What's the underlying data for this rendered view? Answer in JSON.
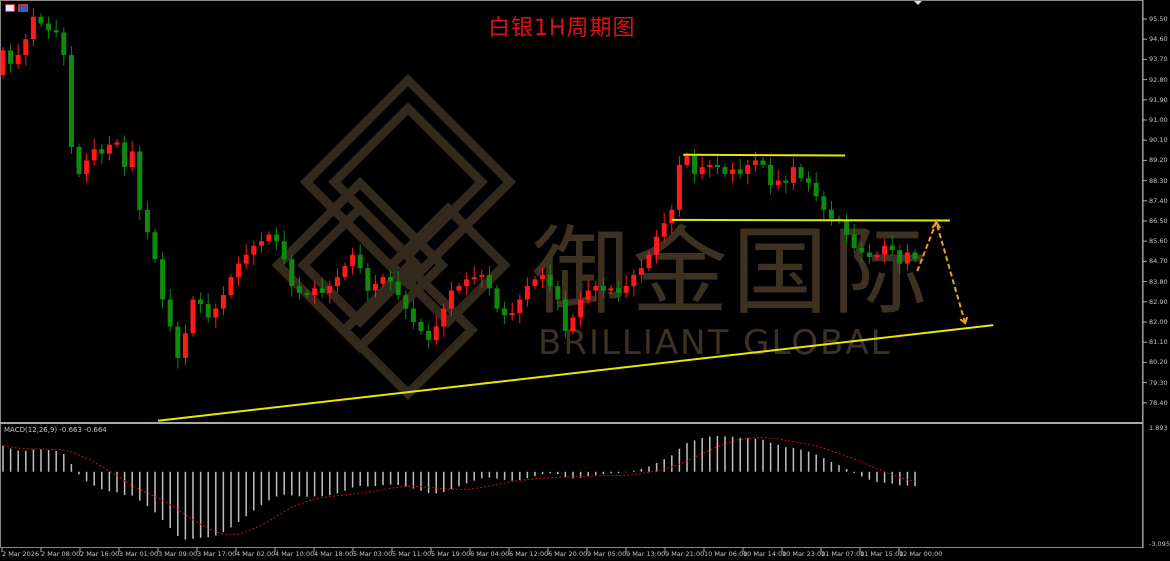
{
  "title": "白银1H周期图",
  "macd_label": "MACD(12,26,9) -0.663 -0.664",
  "watermark": {
    "cn": "御金国际",
    "en": "BRILLIANT GLOBAL"
  },
  "icons": [
    "chart-grid-icon",
    "save-icon",
    "chart-shift-marker-icon"
  ],
  "colors": {
    "bull": "#ff1a1a",
    "bear": "#0f8a0f",
    "trendline": "#e8e800",
    "forecast": "#f0a020",
    "macd_hist": "#c0c0c0",
    "macd_signal": "#d01010",
    "axis": "#c8c8c8",
    "watermark": "#3d3122"
  },
  "chart_data": {
    "type": "candlestick",
    "title": "白银1H周期图",
    "price_axis": {
      "labels": [
        "95.50",
        "94.60",
        "93.70",
        "92.80",
        "91.90",
        "91.00",
        "90.10",
        "89.20",
        "88.30",
        "87.40",
        "86.50",
        "85.60",
        "84.70",
        "83.80",
        "82.90",
        "82.00",
        "81.10",
        "80.20",
        "79.30",
        "78.40"
      ],
      "range": [
        78.0,
        96.0
      ]
    },
    "macd_axis": {
      "labels": [
        "1.893",
        "-3.095"
      ],
      "range": [
        -3.095,
        1.893
      ]
    },
    "time_axis": {
      "labels": [
        "2 Mar 2026",
        "2 Mar 08:00",
        "2 Mar 16:00",
        "3 Mar 01:00",
        "3 Mar 09:00",
        "3 Mar 17:00",
        "4 Mar 02:00",
        "4 Mar 10:00",
        "4 Mar 18:00",
        "5 Mar 03:00",
        "5 Mar 11:00",
        "5 Mar 19:00",
        "6 Mar 04:00",
        "6 Mar 12:00",
        "6 Mar 20:00",
        "9 Mar 05:00",
        "9 Mar 13:00",
        "9 Mar 21:00",
        "10 Mar 06:00",
        "10 Mar 14:00",
        "10 Mar 23:00",
        "11 Mar 07:00",
        "11 Mar 15:00",
        "12 Mar 00:00"
      ]
    },
    "close": [
      94.1,
      93.5,
      93.9,
      94.6,
      95.6,
      95.3,
      95.0,
      94.9,
      93.9,
      89.8,
      88.6,
      89.2,
      89.7,
      89.5,
      89.9,
      90.0,
      88.9,
      89.6,
      87.0,
      86.0,
      84.8,
      83.0,
      81.8,
      80.4,
      81.5,
      83.0,
      82.8,
      82.2,
      82.6,
      83.2,
      84.0,
      84.6,
      85.0,
      85.4,
      85.6,
      85.9,
      85.6,
      84.8,
      83.6,
      83.3,
      83.2,
      83.5,
      83.3,
      83.6,
      84.0,
      84.5,
      85.0,
      84.4,
      83.4,
      83.7,
      84.0,
      83.8,
      83.2,
      82.6,
      82.0,
      81.6,
      81.2,
      81.8,
      82.6,
      83.4,
      83.6,
      83.9,
      84.0,
      84.1,
      83.5,
      82.6,
      82.3,
      82.4,
      83.0,
      83.6,
      83.9,
      84.1,
      83.6,
      83.0,
      81.6,
      82.2,
      83.0,
      83.4,
      83.6,
      83.4,
      83.5,
      83.3,
      83.6,
      84.1,
      84.4,
      85.0,
      85.8,
      86.4,
      87.0,
      89.0,
      89.4,
      88.6,
      88.9,
      89.0,
      88.9,
      88.6,
      88.8,
      88.6,
      89.0,
      89.2,
      89.0,
      88.1,
      88.3,
      88.2,
      88.9,
      88.4,
      88.2,
      87.6,
      87.0,
      86.6,
      86.5,
      85.9,
      85.3,
      85.1,
      84.9,
      85.0,
      85.4,
      85.2,
      84.6,
      85.1,
      84.8
    ],
    "first_open": 93.0,
    "lines": [
      {
        "kind": "support-trendline",
        "points": [
          [
            20.4,
            77.6
          ],
          [
            130.3,
            81.86
          ]
        ]
      },
      {
        "kind": "resistance-top",
        "points": [
          [
            89.5,
            89.45
          ],
          [
            110.8,
            89.42
          ]
        ]
      },
      {
        "kind": "neckline",
        "points": [
          [
            88.0,
            86.55
          ],
          [
            124.6,
            86.52
          ]
        ]
      },
      {
        "kind": "forecast-arrow",
        "points": [
          [
            120.3,
            84.27
          ],
          [
            122.8,
            86.45
          ],
          [
            126.6,
            81.95
          ]
        ]
      }
    ]
  }
}
